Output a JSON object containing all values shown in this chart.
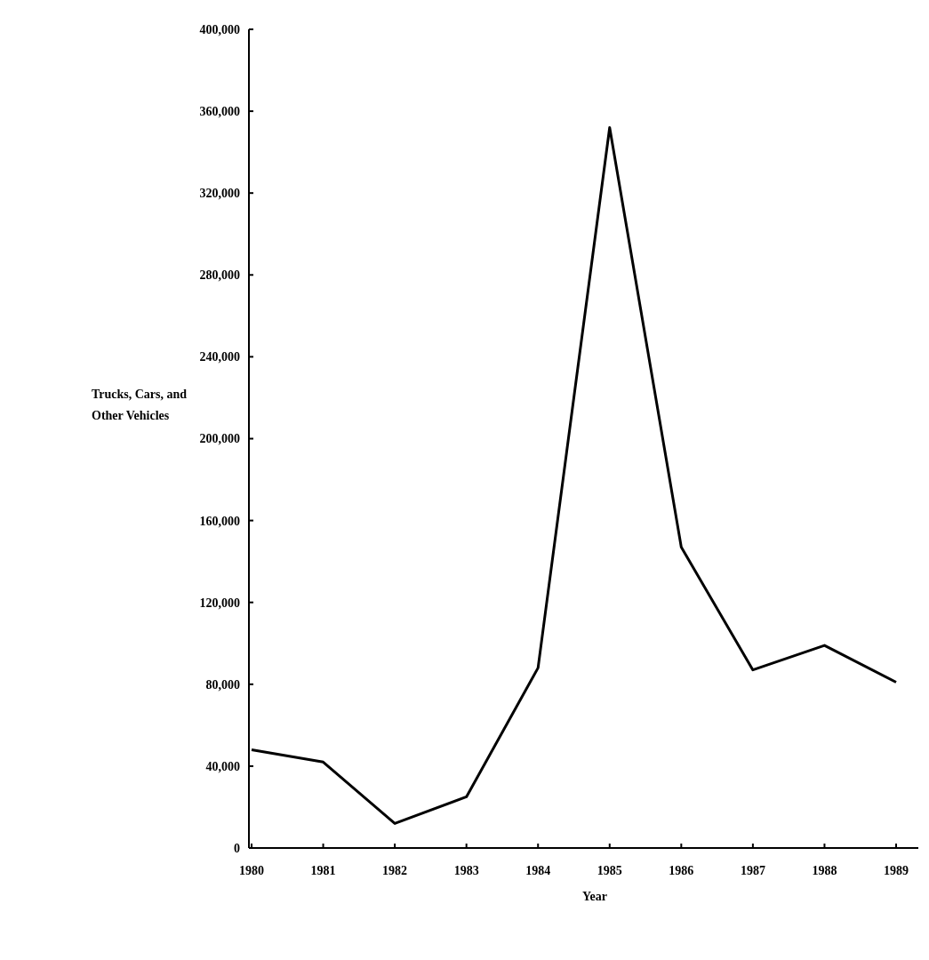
{
  "chart_data": {
    "type": "line",
    "xlabel": "Year",
    "ylabel": "Trucks, Cars, and Other Vehicles",
    "categories": [
      "1980",
      "1981",
      "1982",
      "1983",
      "1984",
      "1985",
      "1986",
      "1987",
      "1988",
      "1989"
    ],
    "series": [
      {
        "color": "#000000",
        "values": [
          48000,
          42000,
          12000,
          25000,
          88000,
          352000,
          147000,
          87000,
          99000,
          81000
        ]
      }
    ],
    "ylim": [
      0,
      400000
    ],
    "yticks": [
      {
        "value": 0,
        "label": "0"
      },
      {
        "value": 40000,
        "label": "40,000"
      },
      {
        "value": 80000,
        "label": "80,000"
      },
      {
        "value": 120000,
        "label": "120,000"
      },
      {
        "value": 160000,
        "label": "160,000"
      },
      {
        "value": 200000,
        "label": "200,000"
      },
      {
        "value": 240000,
        "label": "240,000"
      },
      {
        "value": 280000,
        "label": "280,000"
      },
      {
        "value": 320000,
        "label": "320,000"
      },
      {
        "value": 360000,
        "label": "360,000"
      },
      {
        "value": 400000,
        "label": "400,000"
      }
    ],
    "grid": false,
    "marker": "none",
    "line_style": "solid"
  }
}
